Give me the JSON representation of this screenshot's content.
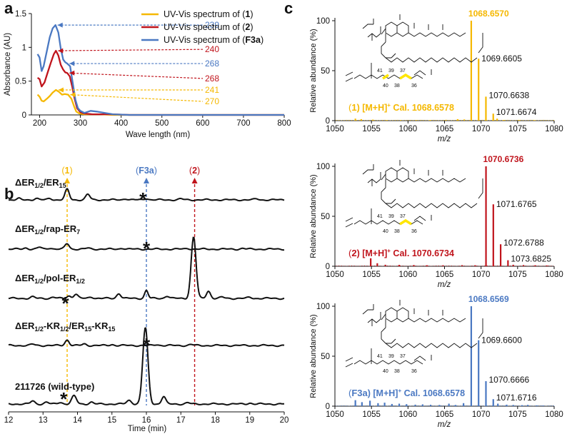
{
  "colors": {
    "c1": "#f5b800",
    "c2": "#c0141c",
    "c3": "#4a78c2",
    "black": "#111111"
  },
  "panel_labels": {
    "a": "a",
    "b": "b",
    "c": "c"
  },
  "chart_data": [
    {
      "id": "a",
      "type": "line",
      "xlabel": "Wave length (nm)",
      "ylabel": "Absorbance (AU)",
      "xlim": [
        180,
        800
      ],
      "ylim": [
        0,
        1.5
      ],
      "xticks": [
        200,
        300,
        400,
        500,
        600,
        700,
        800
      ],
      "yticks": [
        0,
        0.5,
        1,
        1.5
      ],
      "ytick_labels": [
        "0",
        "0.5",
        "1",
        "1.5"
      ],
      "legend": {
        "position": "top-right",
        "entries": [
          {
            "pre": "UV-Vis spectrum of (",
            "bold": "1",
            "post": ")",
            "color": "#f5b800"
          },
          {
            "pre": "UV-Vis spectrum of (",
            "bold": "2",
            "post": ")",
            "color": "#c0141c"
          },
          {
            "pre": "UV-Vis spectrum of (",
            "bold": "F3a",
            "post": ")",
            "color": "#4a78c2"
          }
        ]
      },
      "series": [
        {
          "name": "1",
          "color": "#f5b800",
          "x": [
            195,
            200,
            205,
            210,
            218,
            225,
            232,
            240,
            248,
            255,
            262,
            270,
            278,
            285,
            290,
            298,
            310,
            330,
            350,
            380,
            420,
            500,
            600,
            700,
            800
          ],
          "y": [
            0.3,
            0.27,
            0.21,
            0.2,
            0.24,
            0.28,
            0.33,
            0.37,
            0.34,
            0.3,
            0.31,
            0.3,
            0.24,
            0.12,
            0.05,
            0.02,
            0.01,
            0.01,
            0.01,
            0.0,
            0.0,
            0.0,
            0.0,
            0.0,
            0.0
          ]
        },
        {
          "name": "2",
          "color": "#c0141c",
          "x": [
            195,
            200,
            205,
            212,
            220,
            228,
            235,
            240,
            246,
            252,
            258,
            263,
            268,
            274,
            280,
            286,
            292,
            300,
            310,
            330,
            350,
            380,
            420,
            500,
            600,
            700,
            800
          ],
          "y": [
            0.55,
            0.53,
            0.42,
            0.48,
            0.63,
            0.78,
            0.9,
            0.95,
            0.88,
            0.74,
            0.67,
            0.63,
            0.62,
            0.57,
            0.42,
            0.24,
            0.1,
            0.04,
            0.02,
            0.01,
            0.01,
            0.01,
            0.0,
            0.0,
            0.0,
            0.0,
            0.0
          ]
        },
        {
          "name": "F3a",
          "color": "#4a78c2",
          "x": [
            195,
            200,
            205,
            210,
            218,
            225,
            232,
            239,
            246,
            252,
            258,
            263,
            268,
            275,
            282,
            288,
            294,
            300,
            310,
            325,
            340,
            360,
            380,
            420,
            500,
            600,
            700,
            800
          ],
          "y": [
            0.9,
            0.85,
            0.65,
            0.72,
            0.95,
            1.15,
            1.28,
            1.33,
            1.22,
            0.98,
            0.82,
            0.78,
            0.76,
            0.72,
            0.45,
            0.22,
            0.1,
            0.06,
            0.03,
            0.06,
            0.05,
            0.03,
            0.01,
            0.0,
            0.0,
            0.0,
            0.0,
            0.0
          ]
        }
      ],
      "annotations": [
        {
          "label": "239",
          "x": 239,
          "y": 1.33,
          "ty": 1.33,
          "color": "#4a78c2"
        },
        {
          "label": "240",
          "x": 240,
          "y": 0.95,
          "ty": 0.97,
          "color": "#c0141c"
        },
        {
          "label": "268",
          "x": 268,
          "y": 0.76,
          "ty": 0.76,
          "color": "#4a78c2"
        },
        {
          "label": "268",
          "x": 268,
          "y": 0.62,
          "ty": 0.54,
          "color": "#c0141c"
        },
        {
          "label": "241",
          "x": 241,
          "y": 0.37,
          "ty": 0.37,
          "color": "#f5b800"
        },
        {
          "label": "270",
          "x": 270,
          "y": 0.3,
          "ty": 0.2,
          "color": "#f5b800"
        }
      ]
    },
    {
      "id": "b",
      "type": "line",
      "xlabel": "Time (min)",
      "xlim": [
        12,
        20
      ],
      "xticks": [
        12,
        13,
        14,
        15,
        16,
        17,
        18,
        19,
        20
      ],
      "markers": [
        {
          "label": "(1)",
          "bold": "1",
          "x": 13.7,
          "color": "#f5b800"
        },
        {
          "label": "(F3a)",
          "bold": "F3a",
          "x": 16.0,
          "color": "#4a78c2"
        },
        {
          "label": "(2)",
          "bold": "2",
          "x": 17.4,
          "color": "#c0141c"
        }
      ],
      "traces": [
        {
          "name": "ΔER1/2/ER15",
          "sub": [
            "1/2",
            "15"
          ],
          "label_parts": [
            [
              "ΔER",
              ""
            ],
            [
              "1/2",
              "sub"
            ],
            [
              "/ER",
              ""
            ],
            [
              "15",
              "sub"
            ]
          ],
          "star_x": 15.9,
          "peaks": [
            [
              12.3,
              0.01,
              0.05
            ],
            [
              12.8,
              0.012,
              0.06
            ],
            [
              13.2,
              0.012,
              0.06
            ],
            [
              13.7,
              0.085,
              0.06
            ],
            [
              14.3,
              0.045,
              0.06
            ],
            [
              15.4,
              0.01,
              0.06
            ],
            [
              16.0,
              0.012,
              0.06
            ],
            [
              17.0,
              0.008,
              0.06
            ],
            [
              19.2,
              0.008,
              0.06
            ]
          ]
        },
        {
          "name": "ΔER1/2/rap-ER7",
          "label_parts": [
            [
              "ΔER",
              ""
            ],
            [
              "1/2",
              "sub"
            ],
            [
              "/rap-ER",
              ""
            ],
            [
              "7",
              "sub"
            ]
          ],
          "star_x": 16.0,
          "peaks": [
            [
              12.5,
              0.01,
              0.06
            ],
            [
              12.9,
              0.015,
              0.06
            ],
            [
              13.2,
              0.01,
              0.06
            ],
            [
              13.7,
              0.045,
              0.06
            ],
            [
              14.3,
              0.008,
              0.06
            ],
            [
              15.3,
              0.008,
              0.06
            ],
            [
              17.2,
              0.006,
              0.06
            ],
            [
              18.8,
              0.006,
              0.06
            ]
          ]
        },
        {
          "name": "ΔER1/2/pol-ER1/2",
          "label_parts": [
            [
              "ΔER",
              ""
            ],
            [
              "1/2",
              "sub"
            ],
            [
              "/pol-ER",
              ""
            ],
            [
              "1/2",
              "sub"
            ]
          ],
          "star_x": 13.65,
          "peaks": [
            [
              12.7,
              0.012,
              0.06
            ],
            [
              13.3,
              0.01,
              0.06
            ],
            [
              13.75,
              0.02,
              0.06
            ],
            [
              13.95,
              0.035,
              0.06
            ],
            [
              14.4,
              0.012,
              0.06
            ],
            [
              15.2,
              0.04,
              0.06
            ],
            [
              16.0,
              0.065,
              0.05
            ],
            [
              16.6,
              0.02,
              0.06
            ],
            [
              17.37,
              0.5,
              0.07
            ],
            [
              17.8,
              0.06,
              0.06
            ],
            [
              18.2,
              0.01,
              0.06
            ],
            [
              19.0,
              0.008,
              0.06
            ]
          ]
        },
        {
          "name": "ΔER1/2-KR1/2/ER15-KR15",
          "label_parts": [
            [
              "ΔER",
              ""
            ],
            [
              "1/2",
              "sub"
            ],
            [
              "-KR",
              ""
            ],
            [
              "1/2",
              "sub"
            ],
            [
              "/ER",
              ""
            ],
            [
              "15",
              "sub"
            ],
            [
              "-KR",
              ""
            ],
            [
              "15",
              "sub"
            ]
          ],
          "star_x": 16.0,
          "peaks": [
            [
              12.7,
              0.01,
              0.06
            ],
            [
              13.7,
              0.045,
              0.06
            ],
            [
              14.2,
              0.012,
              0.06
            ],
            [
              15.0,
              0.008,
              0.06
            ],
            [
              16.3,
              0.008,
              0.06
            ],
            [
              17.3,
              0.008,
              0.06
            ]
          ]
        },
        {
          "name": "211726 (wild-type)",
          "label_parts": [
            [
              "211726 (wild-type)",
              ""
            ]
          ],
          "star_x": 13.6,
          "peaks": [
            [
              12.7,
              0.025,
              0.06
            ],
            [
              13.1,
              0.015,
              0.06
            ],
            [
              13.5,
              0.015,
              0.06
            ],
            [
              13.9,
              0.065,
              0.07
            ],
            [
              14.4,
              0.015,
              0.06
            ],
            [
              15.5,
              0.03,
              0.07
            ],
            [
              15.97,
              0.62,
              0.075
            ],
            [
              16.5,
              0.06,
              0.06
            ],
            [
              17.2,
              0.01,
              0.06
            ],
            [
              19.0,
              0.008,
              0.06
            ]
          ]
        }
      ]
    },
    {
      "id": "c",
      "type": "bar",
      "xlabel": "m/z",
      "ylabel": "Relative abundance (%)",
      "xlim": [
        1050,
        1080
      ],
      "ylim": [
        0,
        100
      ],
      "xticks": [
        1050,
        1055,
        1060,
        1065,
        1070,
        1075,
        1080
      ],
      "yticks": [
        0,
        50,
        100
      ],
      "spectra": [
        {
          "compound": "1",
          "color": "#f5b800",
          "cal_pre": "(",
          "cal_bold": "1",
          "cal_post": ") [M+H]",
          "cal_sup": "+",
          "cal_tail": " Cal. 1068.6578",
          "peak_labels": [
            {
              "mz": 1068.657,
              "text": "1068.6570",
              "primary": true
            },
            {
              "mz": 1069.6605,
              "text": "1069.6605"
            },
            {
              "mz": 1070.6638,
              "text": "1070.6638"
            },
            {
              "mz": 1071.6674,
              "text": "1071.6674"
            }
          ],
          "sticks": [
            [
              1068.657,
              100
            ],
            [
              1069.6605,
              62
            ],
            [
              1070.6638,
              24
            ],
            [
              1071.6674,
              7
            ],
            [
              1072.2,
              2
            ],
            [
              1066.8,
              1.5
            ],
            [
              1067.7,
              1.2
            ],
            [
              1065.2,
              0.8
            ],
            [
              1052.8,
              2
            ],
            [
              1053.6,
              1.5
            ],
            [
              1055.2,
              1
            ],
            [
              1057.1,
              0.6
            ],
            [
              1059.0,
              0.6
            ],
            [
              1061.1,
              0.7
            ],
            [
              1063.0,
              0.6
            ],
            [
              1073.1,
              0.7
            ],
            [
              1075.2,
              0.6
            ],
            [
              1077.3,
              0.5
            ]
          ],
          "structure_labels": [
            "41",
            "40",
            "39",
            "38",
            "37",
            "36"
          ],
          "highlight": [
            [
              37,
              36
            ],
            [
              40,
              39
            ]
          ]
        },
        {
          "compound": "2",
          "color": "#c0141c",
          "cal_pre": "(",
          "cal_bold": "2",
          "cal_post": ") [M+H]",
          "cal_sup": "+",
          "cal_tail": " Cal. 1070.6734",
          "peak_labels": [
            {
              "mz": 1070.6736,
              "text": "1070.6736",
              "primary": true
            },
            {
              "mz": 1071.6765,
              "text": "1071.6765"
            },
            {
              "mz": 1072.6788,
              "text": "1072.6788"
            },
            {
              "mz": 1073.6825,
              "text": "1073.6825"
            }
          ],
          "sticks": [
            [
              1070.6736,
              100
            ],
            [
              1071.6765,
              62
            ],
            [
              1072.6788,
              22
            ],
            [
              1073.6825,
              6
            ],
            [
              1074.4,
              1.5
            ],
            [
              1069.2,
              1
            ],
            [
              1067.4,
              1.1
            ],
            [
              1054.9,
              8
            ],
            [
              1055.8,
              3
            ],
            [
              1056.9,
              1.5
            ],
            [
              1058.8,
              1.4
            ],
            [
              1060.8,
              1.2
            ],
            [
              1062.6,
              1
            ],
            [
              1064.8,
              1
            ],
            [
              1075.8,
              1.2
            ],
            [
              1077.4,
              1
            ],
            [
              1079.0,
              0.8
            ]
          ],
          "structure_labels": [
            "41",
            "40",
            "39",
            "38",
            "37",
            "36"
          ],
          "highlight": [
            [
              37,
              36
            ]
          ]
        },
        {
          "compound": "F3a",
          "color": "#4a78c2",
          "cal_pre": "(",
          "cal_bold": "F3a",
          "cal_post": ") [M+H]",
          "cal_sup": "+",
          "cal_tail": " Cal. 1068.6578",
          "peak_labels": [
            {
              "mz": 1068.6569,
              "text": "1068.6569",
              "primary": true
            },
            {
              "mz": 1069.66,
              "text": "1069.6600"
            },
            {
              "mz": 1070.6666,
              "text": "1070.6666"
            },
            {
              "mz": 1071.6716,
              "text": "1071.6716"
            }
          ],
          "sticks": [
            [
              1068.6569,
              100
            ],
            [
              1069.66,
              66
            ],
            [
              1070.6666,
              25
            ],
            [
              1071.6716,
              7
            ],
            [
              1072.3,
              2.5
            ],
            [
              1052.8,
              6
            ],
            [
              1053.7,
              4
            ],
            [
              1054.8,
              5.5
            ],
            [
              1055.9,
              3
            ],
            [
              1056.8,
              3.5
            ],
            [
              1057.8,
              2.2
            ],
            [
              1058.8,
              2.5
            ],
            [
              1059.8,
              2
            ],
            [
              1061.0,
              1.5
            ],
            [
              1062.0,
              1.8
            ],
            [
              1063.1,
              1.4
            ],
            [
              1064.3,
              1.2
            ],
            [
              1065.6,
              2.5
            ],
            [
              1066.5,
              1.2
            ],
            [
              1067.6,
              3
            ],
            [
              1073.5,
              1.5
            ],
            [
              1074.4,
              1.2
            ],
            [
              1075.6,
              1
            ],
            [
              1076.4,
              1.3
            ],
            [
              1077.6,
              0.8
            ],
            [
              1078.5,
              0.7
            ]
          ],
          "structure_labels": [
            "41",
            "40",
            "39",
            "38",
            "37",
            "36"
          ],
          "highlight": []
        }
      ]
    }
  ]
}
